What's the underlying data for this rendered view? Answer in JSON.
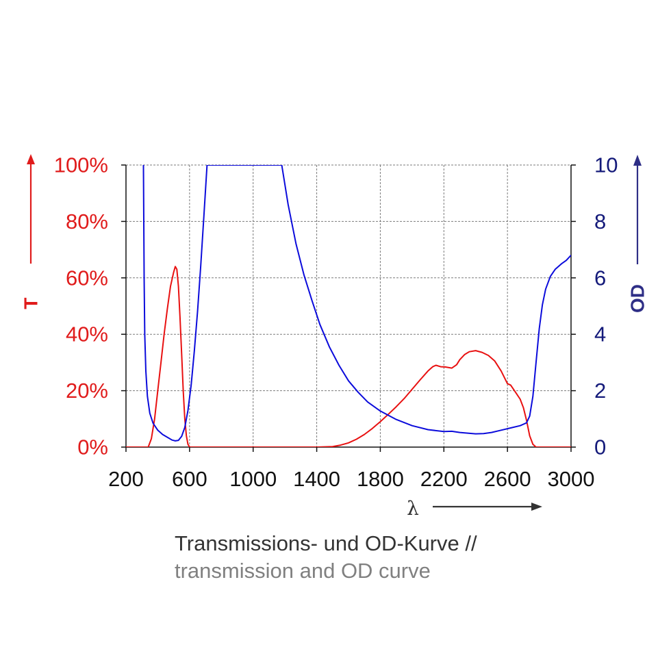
{
  "caption": {
    "line1": "Transmissions- und OD-Kurve //",
    "line2": "transmission and OD curve",
    "line1_color": "#333333",
    "line2_color": "#808080"
  },
  "chart_data": {
    "type": "line",
    "xlabel": "λ",
    "x_range": [
      200,
      3000
    ],
    "x_ticks": [
      "200",
      "600",
      "1000",
      "1400",
      "1800",
      "2200",
      "2600",
      "3000"
    ],
    "y_left": {
      "label": "T",
      "range": [
        0,
        100
      ],
      "ticks": [
        "0%",
        "20%",
        "40%",
        "60%",
        "80%",
        "100%"
      ],
      "color": "#e01b1b"
    },
    "y_right": {
      "label": "OD",
      "range": [
        0,
        10
      ],
      "ticks": [
        "0",
        "2",
        "4",
        "6",
        "8",
        "10"
      ],
      "color": "#141a7a",
      "arrow_color": "#2e2e86"
    },
    "grid": true,
    "series": [
      {
        "axis": "left",
        "color": "#e81010",
        "points": [
          [
            200,
            0
          ],
          [
            340,
            0
          ],
          [
            360,
            3
          ],
          [
            380,
            10
          ],
          [
            400,
            20
          ],
          [
            420,
            30
          ],
          [
            440,
            40
          ],
          [
            460,
            49
          ],
          [
            480,
            57
          ],
          [
            500,
            62
          ],
          [
            510,
            64
          ],
          [
            520,
            63
          ],
          [
            530,
            57
          ],
          [
            540,
            46
          ],
          [
            550,
            33
          ],
          [
            560,
            20
          ],
          [
            570,
            10
          ],
          [
            580,
            4
          ],
          [
            590,
            1
          ],
          [
            600,
            0
          ],
          [
            1400,
            0
          ],
          [
            1500,
            0.2
          ],
          [
            1550,
            0.7
          ],
          [
            1600,
            1.5
          ],
          [
            1650,
            2.8
          ],
          [
            1700,
            4.5
          ],
          [
            1750,
            6.6
          ],
          [
            1800,
            9
          ],
          [
            1850,
            11.6
          ],
          [
            1900,
            14.3
          ],
          [
            1950,
            17.2
          ],
          [
            2000,
            20.5
          ],
          [
            2050,
            23.8
          ],
          [
            2100,
            27
          ],
          [
            2130,
            28.5
          ],
          [
            2150,
            29
          ],
          [
            2180,
            28.5
          ],
          [
            2210,
            28.4
          ],
          [
            2250,
            28
          ],
          [
            2280,
            29.2
          ],
          [
            2300,
            31
          ],
          [
            2330,
            32.8
          ],
          [
            2360,
            33.8
          ],
          [
            2400,
            34.2
          ],
          [
            2440,
            33.6
          ],
          [
            2480,
            32.5
          ],
          [
            2520,
            30.5
          ],
          [
            2560,
            27
          ],
          [
            2600,
            22.5
          ],
          [
            2620,
            22
          ],
          [
            2650,
            19.5
          ],
          [
            2680,
            17
          ],
          [
            2700,
            14
          ],
          [
            2720,
            9.5
          ],
          [
            2740,
            4
          ],
          [
            2760,
            1
          ],
          [
            2780,
            0
          ],
          [
            3000,
            0
          ]
        ]
      },
      {
        "axis": "right",
        "color": "#0b0bdb",
        "points": [
          [
            310,
            10
          ],
          [
            312,
            8
          ],
          [
            314,
            6
          ],
          [
            318,
            4
          ],
          [
            325,
            2.7
          ],
          [
            335,
            1.8
          ],
          [
            350,
            1.2
          ],
          [
            370,
            0.85
          ],
          [
            400,
            0.6
          ],
          [
            430,
            0.45
          ],
          [
            460,
            0.35
          ],
          [
            490,
            0.25
          ],
          [
            510,
            0.22
          ],
          [
            530,
            0.24
          ],
          [
            550,
            0.38
          ],
          [
            570,
            0.7
          ],
          [
            590,
            1.3
          ],
          [
            610,
            2.2
          ],
          [
            630,
            3.4
          ],
          [
            650,
            4.8
          ],
          [
            670,
            6.4
          ],
          [
            690,
            8.2
          ],
          [
            710,
            10
          ],
          [
            1180,
            10
          ],
          [
            1220,
            8.6
          ],
          [
            1270,
            7.2
          ],
          [
            1320,
            6.1
          ],
          [
            1370,
            5.2
          ],
          [
            1420,
            4.35
          ],
          [
            1480,
            3.55
          ],
          [
            1540,
            2.9
          ],
          [
            1600,
            2.35
          ],
          [
            1660,
            1.95
          ],
          [
            1720,
            1.6
          ],
          [
            1800,
            1.28
          ],
          [
            1900,
            0.98
          ],
          [
            2000,
            0.76
          ],
          [
            2100,
            0.62
          ],
          [
            2200,
            0.55
          ],
          [
            2250,
            0.56
          ],
          [
            2300,
            0.52
          ],
          [
            2400,
            0.47
          ],
          [
            2450,
            0.48
          ],
          [
            2500,
            0.52
          ],
          [
            2560,
            0.6
          ],
          [
            2620,
            0.68
          ],
          [
            2680,
            0.76
          ],
          [
            2720,
            0.86
          ],
          [
            2740,
            1.1
          ],
          [
            2760,
            1.8
          ],
          [
            2780,
            3
          ],
          [
            2800,
            4.2
          ],
          [
            2820,
            5.05
          ],
          [
            2840,
            5.6
          ],
          [
            2870,
            6.05
          ],
          [
            2900,
            6.3
          ],
          [
            2940,
            6.5
          ],
          [
            2970,
            6.62
          ],
          [
            3000,
            6.8
          ]
        ]
      }
    ]
  }
}
